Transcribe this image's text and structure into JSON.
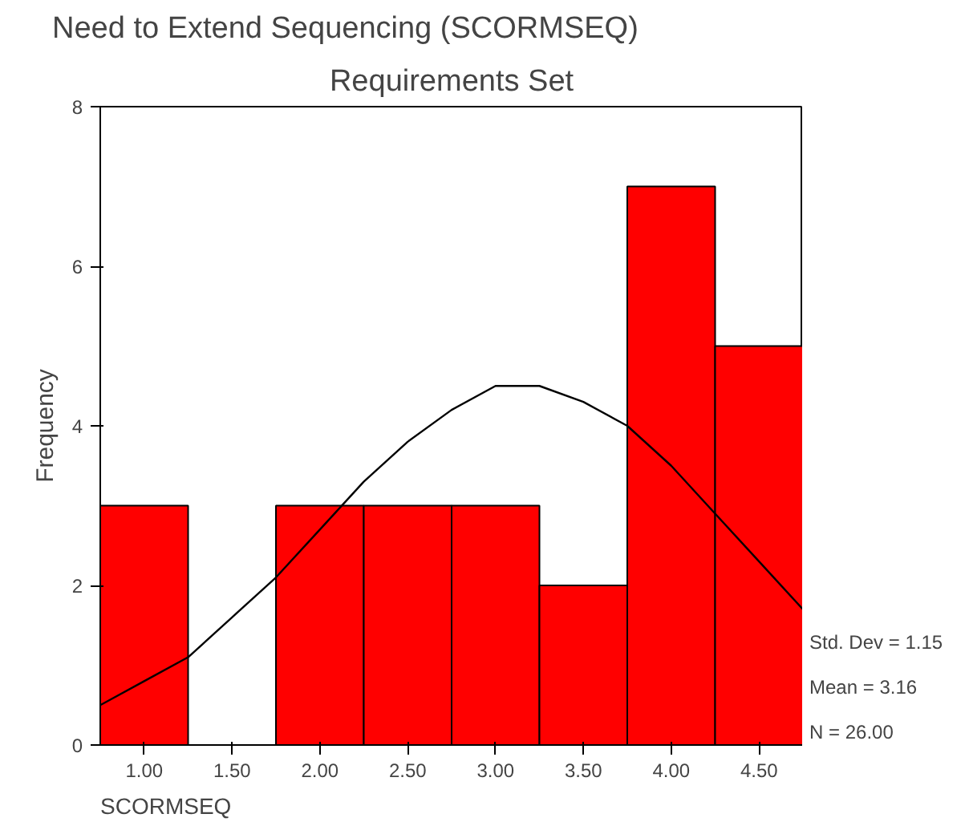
{
  "chart_data": {
    "type": "histogram",
    "title": "Need to Extend Sequencing (SCORMSEQ)",
    "subtitle": "Requirements Set",
    "xlabel": "SCORMSEQ",
    "ylabel": "Frequency",
    "bins": [
      0.75,
      1.25,
      1.75,
      2.25,
      2.75,
      3.25,
      3.75,
      4.25,
      4.75
    ],
    "values": [
      3,
      0,
      3,
      3,
      3,
      2,
      7,
      5
    ],
    "color": "#ff0000",
    "series": [
      {
        "type": "line",
        "color": "#000000",
        "x": [
          0.75,
          1.0,
          1.25,
          1.5,
          1.75,
          2.0,
          2.25,
          2.5,
          2.75,
          3.0,
          3.16,
          3.25,
          3.5,
          3.75,
          4.0,
          4.25,
          4.5,
          4.75
        ],
        "values": [
          0.5,
          0.8,
          1.1,
          1.6,
          2.1,
          2.7,
          3.3,
          3.8,
          4.2,
          4.5,
          4.5,
          4.5,
          4.3,
          4.0,
          3.5,
          2.9,
          2.3,
          1.7
        ]
      }
    ],
    "xlim": [
      0.75,
      4.75
    ],
    "xticks": [
      {
        "value": 1,
        "label": "1.00"
      },
      {
        "value": 1.5,
        "label": "1.50"
      },
      {
        "value": 2,
        "label": "2.00"
      },
      {
        "value": 2.5,
        "label": "2.50"
      },
      {
        "value": 3,
        "label": "3.00"
      },
      {
        "value": 3.5,
        "label": "3.50"
      },
      {
        "value": 4,
        "label": "4.00"
      },
      {
        "value": 4.5,
        "label": "4.50"
      }
    ],
    "ylim": [
      0,
      8
    ],
    "yticks": [
      0,
      2,
      4,
      6,
      8
    ],
    "grid": false,
    "annotations": [
      "Std. Dev = 1.15",
      "Mean = 3.16",
      "N = 26.00"
    ]
  }
}
